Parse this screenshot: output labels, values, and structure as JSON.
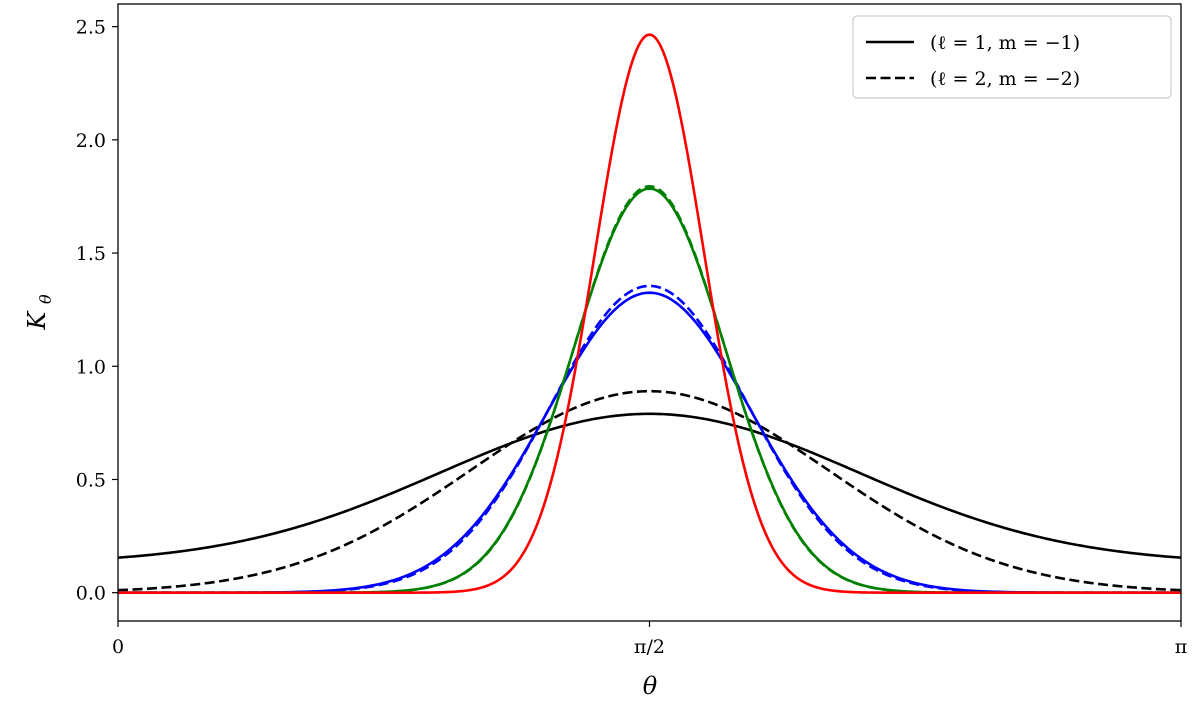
{
  "chart_data": {
    "type": "line",
    "xlabel": "θ",
    "ylabel": "K",
    "ylabel_sub": "θ",
    "xlim": [
      0,
      3.14159265
    ],
    "ylim": [
      -0.125,
      2.6
    ],
    "x_ticks": [
      {
        "value": 0,
        "label": "0"
      },
      {
        "value": 1.5707963,
        "label": "π/2"
      },
      {
        "value": 3.14159265,
        "label": "π"
      }
    ],
    "y_ticks": [
      {
        "value": 0.0,
        "label": "0.0"
      },
      {
        "value": 0.5,
        "label": "0.5"
      },
      {
        "value": 1.0,
        "label": "1.0"
      },
      {
        "value": 1.5,
        "label": "1.5"
      },
      {
        "value": 2.0,
        "label": "2.0"
      },
      {
        "value": 2.5,
        "label": "2.5"
      }
    ],
    "grid": false,
    "legend_position": "top-right",
    "legend": [
      {
        "label": "(ℓ = 1, m = −1)",
        "style": "solid"
      },
      {
        "label": "(ℓ = 2, m = −2)",
        "style": "dashed"
      }
    ],
    "series": [
      {
        "color": "#000000",
        "style": "solid",
        "peak": 0.79,
        "base": 0.128,
        "width": 0.62
      },
      {
        "color": "#000000",
        "style": "dashed",
        "peak": 0.89,
        "base": 0.0,
        "width": 0.53
      },
      {
        "color": "#0000ff",
        "style": "solid",
        "peak": 1.325,
        "base": 0.0,
        "width": 0.3
      },
      {
        "color": "#0000ff",
        "style": "dashed",
        "peak": 1.355,
        "base": 0.0,
        "width": 0.294
      },
      {
        "color": "#008000",
        "style": "solid",
        "peak": 1.785,
        "base": 0.0,
        "width": 0.223
      },
      {
        "color": "#008000",
        "style": "dashed",
        "peak": 1.795,
        "base": 0.0,
        "width": 0.222
      },
      {
        "color": "#ff0000",
        "style": "solid",
        "peak": 2.465,
        "base": 0.0,
        "width": 0.162
      }
    ]
  }
}
